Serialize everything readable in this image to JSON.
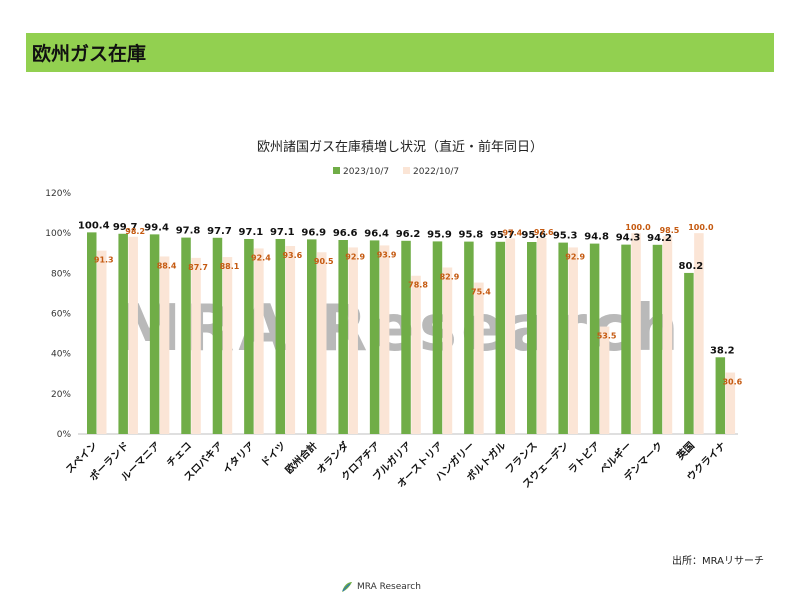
{
  "header": {
    "title": "欧州ガス在庫"
  },
  "source": "出所：MRAリサーチ",
  "logo": {
    "text": "MRA Research",
    "icon": "leaf-swirl-logo"
  },
  "watermark": "MRA Research",
  "colors": {
    "header": "#92d050",
    "series1": "#70ad47",
    "series2": "#fbe5d6",
    "label2": "#c55a11"
  },
  "chart_data": {
    "type": "bar",
    "title": "欧州諸国ガス在庫積増し状況（直近・前年同日）",
    "xlabel": "",
    "ylabel": "",
    "ylim": [
      0,
      120
    ],
    "yticks": [
      "0%",
      "20%",
      "40%",
      "60%",
      "80%",
      "100%",
      "120%"
    ],
    "grid": false,
    "legend_position": "top",
    "categories": [
      "スペイン",
      "ポーランド",
      "ルーマニア",
      "チェコ",
      "スロバキア",
      "イタリア",
      "ドイツ",
      "欧州合計",
      "オランダ",
      "クロアチア",
      "ブルガリア",
      "オーストリア",
      "ハンガリー",
      "ポルトガル",
      "フランス",
      "スウェーデン",
      "ラトビア",
      "ベルギー",
      "デンマーク",
      "英国",
      "ウクライナ"
    ],
    "series": [
      {
        "name": "2023/10/7",
        "values": [
          100.4,
          99.7,
          99.4,
          97.8,
          97.7,
          97.1,
          97.1,
          96.9,
          96.6,
          96.4,
          96.2,
          95.9,
          95.8,
          95.7,
          95.6,
          95.3,
          94.8,
          94.3,
          94.2,
          80.2,
          38.2
        ]
      },
      {
        "name": "2022/10/7",
        "values": [
          91.3,
          98.2,
          88.4,
          87.7,
          88.1,
          92.4,
          93.6,
          90.5,
          92.9,
          93.9,
          78.8,
          82.9,
          75.4,
          97.4,
          97.6,
          92.9,
          53.5,
          100.0,
          98.5,
          100.0,
          30.6
        ]
      }
    ]
  }
}
